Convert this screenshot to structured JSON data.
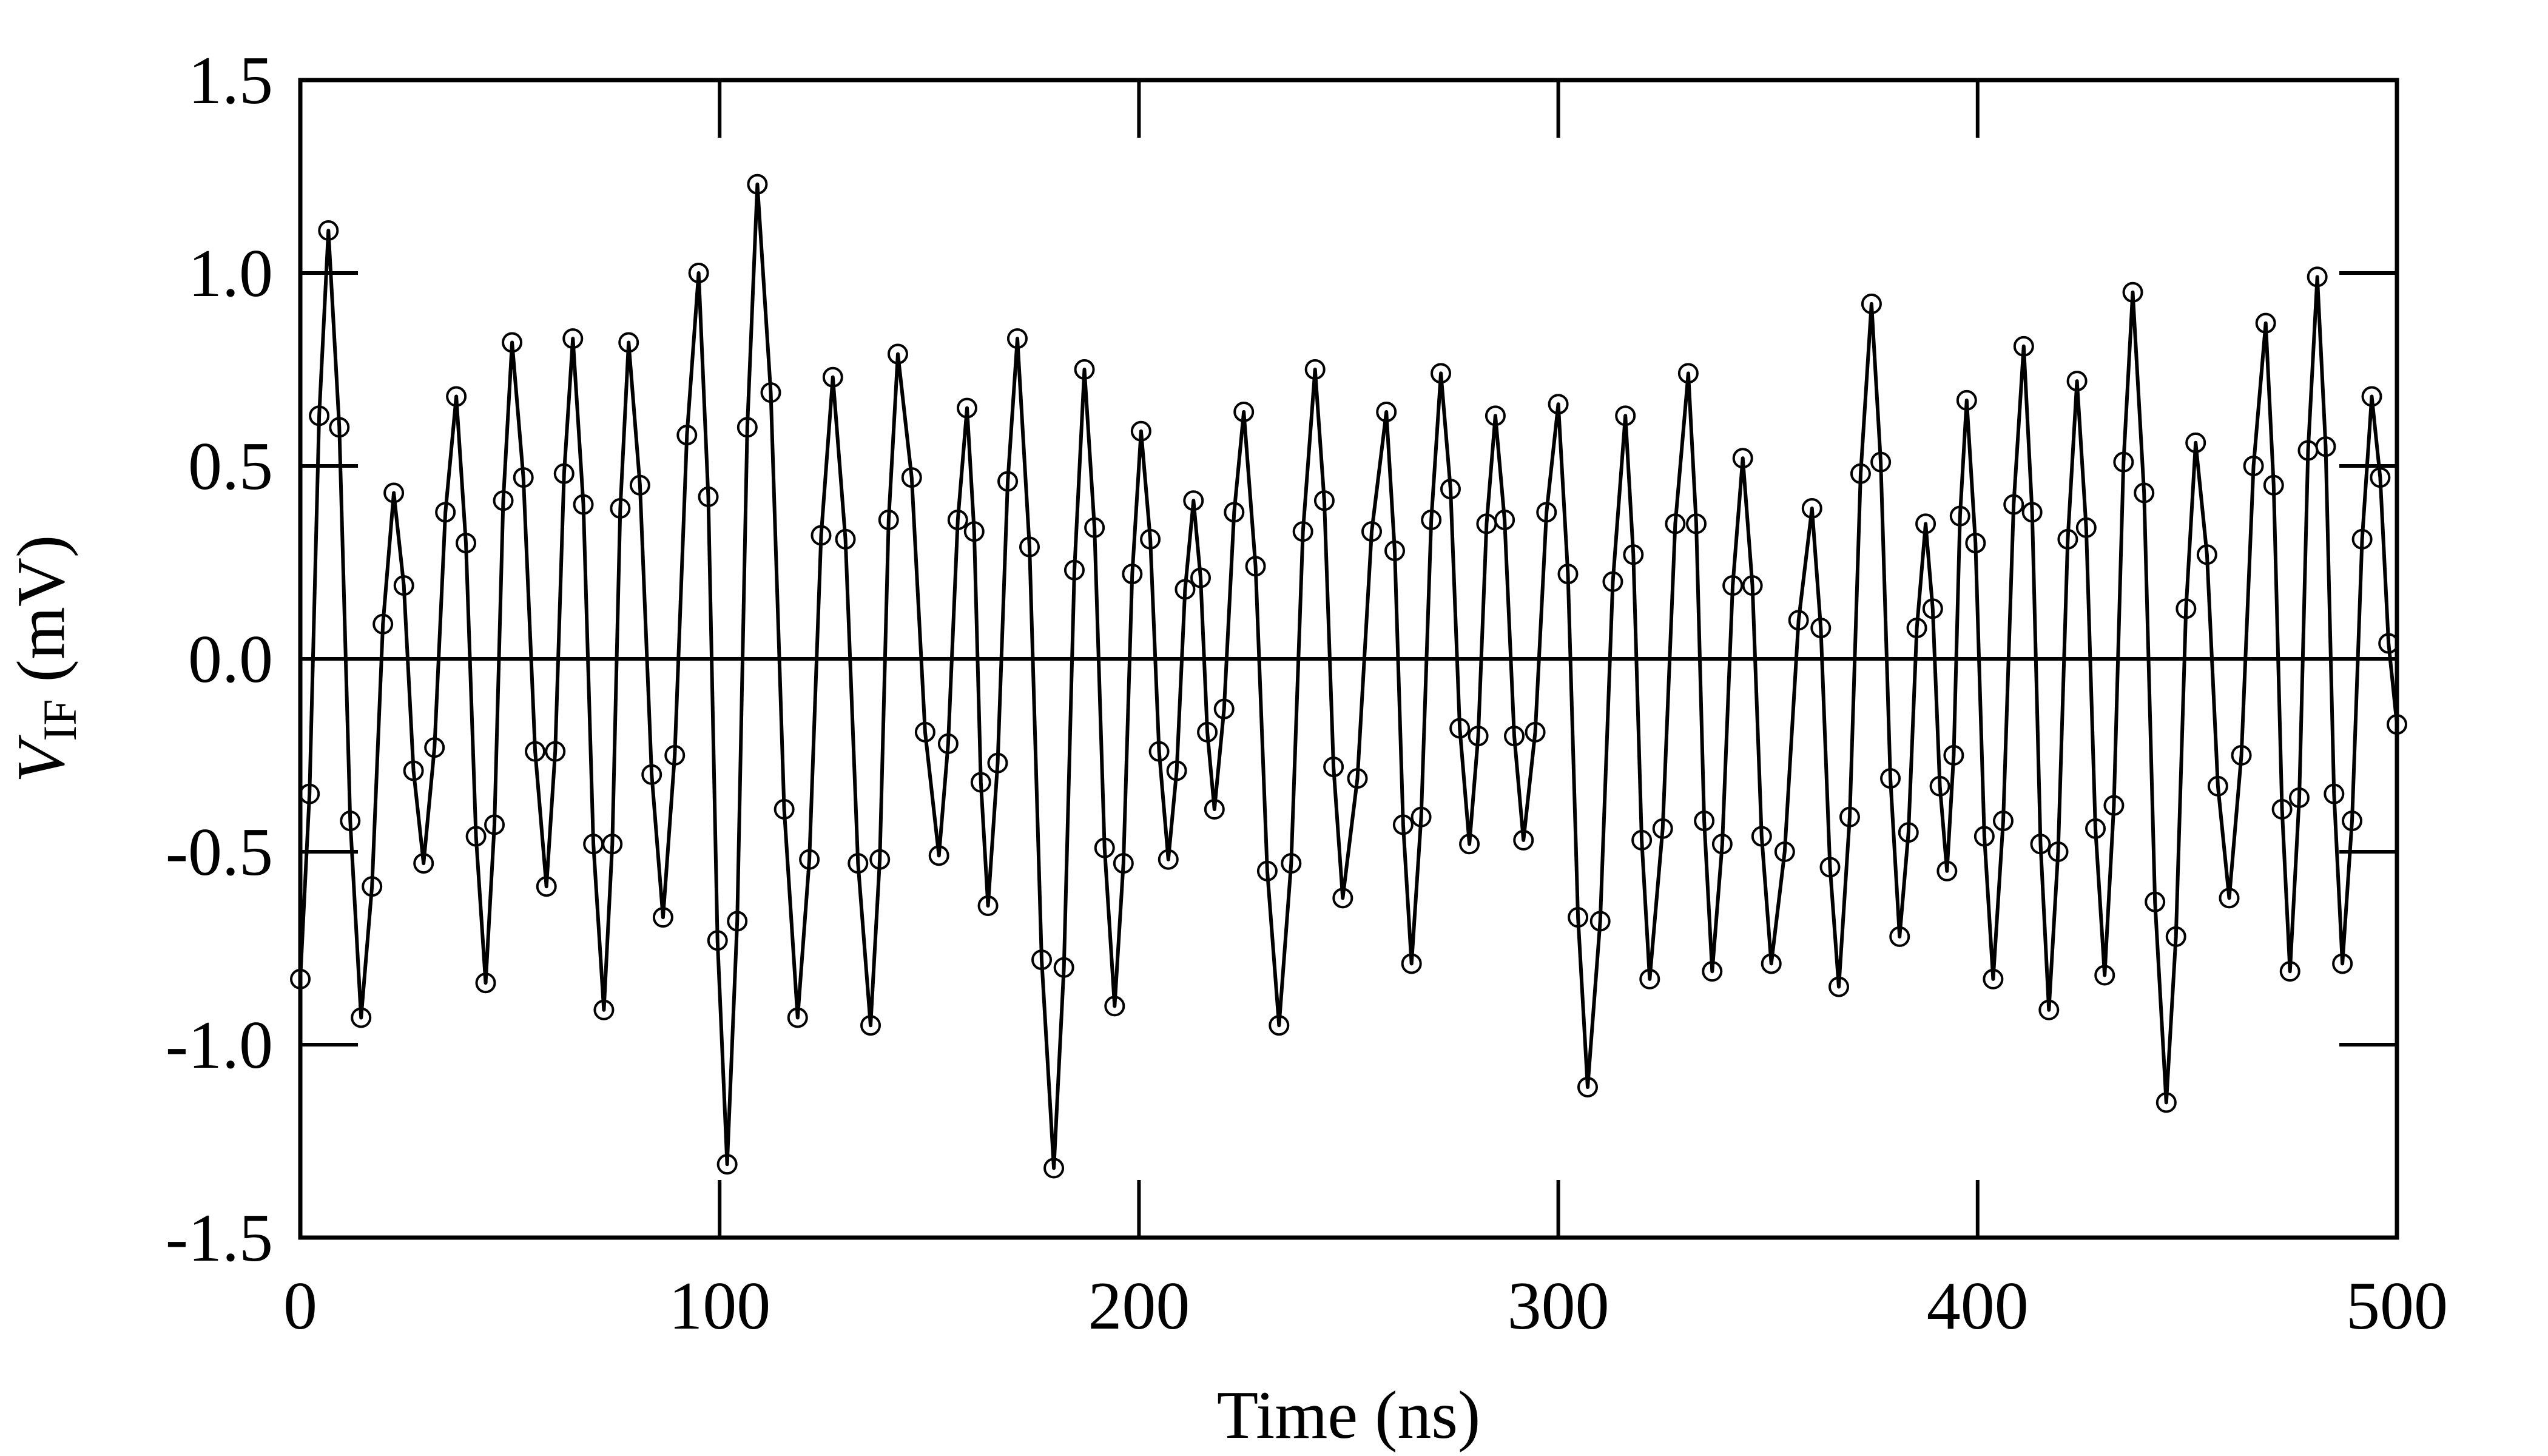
{
  "chart_data": {
    "type": "line",
    "xlabel": "Time (ns)",
    "ylabel": {
      "symbol": "V",
      "subscript": "IF",
      "unit": "(mV)"
    },
    "xlim": [
      0,
      500
    ],
    "xticks": [
      0,
      100,
      200,
      300,
      400,
      500
    ],
    "ylim": [
      -1.5,
      1.5
    ],
    "yticks": [
      -1.5,
      {
        "value": -1,
        "label": "-1.0"
      },
      -0.5,
      {
        "value": 0,
        "label": "0.0"
      },
      0.5,
      {
        "value": 1,
        "label": "1.0"
      },
      1.5
    ],
    "hline": 0,
    "series": [
      {
        "color": "#000000",
        "x": [
          0,
          2.2,
          4.5,
          6.7,
          9.3,
          11.9,
          14.5,
          17.1,
          19.7,
          22.3,
          24.7,
          27.0,
          29.4,
          32.0,
          34.6,
          37.2,
          39.5,
          41.9,
          44.2,
          46.3,
          48.4,
          50.5,
          53.2,
          56.0,
          58.7,
          60.8,
          62.9,
          65,
          67.5,
          69.9,
          72.4,
          74.4,
          76.3,
          78.3,
          81.0,
          83.8,
          86.5,
          89.3,
          92.2,
          95,
          97.3,
          99.5,
          101.8,
          104.2,
          106.6,
          109,
          112.2,
          115.4,
          118.6,
          121.4,
          124.2,
          127,
          130,
          133,
          136,
          138.2,
          140.3,
          142.5,
          145.8,
          149.0,
          152.3,
          154.5,
          156.8,
          159,
          160.7,
          162.3,
          164,
          166.3,
          168.7,
          171,
          173.9,
          176.8,
          179.7,
          182.1,
          184.6,
          187,
          189.4,
          191.8,
          194.2,
          196.3,
          198.4,
          200.5,
          202.7,
          204.8,
          207,
          209,
          211,
          213,
          214.7,
          216.3,
          218,
          220.3,
          222.7,
          225,
          227.8,
          230.6,
          233.4,
          236.3,
          239.1,
          242,
          244.2,
          246.4,
          248.6,
          252.1,
          255.5,
          259,
          261,
          263,
          265,
          267.3,
          269.7,
          272,
          274.3,
          276.5,
          278.8,
          280.9,
          282.9,
          285,
          287.2,
          289.5,
          291.7,
          294.5,
          297.2,
          300,
          302.3,
          304.7,
          307,
          310,
          313,
          316,
          317.9,
          319.9,
          321.8,
          324.9,
          327.9,
          331,
          332.9,
          334.8,
          336.7,
          339.1,
          341.6,
          344,
          346.3,
          348.5,
          350.8,
          354.0,
          357.3,
          360.5,
          362.6,
          364.8,
          366.9,
          369.5,
          372.1,
          374.7,
          376.9,
          379.2,
          381.4,
          383.5,
          385.5,
          387.6,
          389.3,
          391.0,
          392.7,
          394.3,
          395.8,
          397.4,
          399.5,
          401.6,
          403.7,
          406.1,
          408.6,
          411,
          413,
          415,
          417,
          419.2,
          421.5,
          423.7,
          425.9,
          428.1,
          430.3,
          432.5,
          434.8,
          437,
          439.7,
          442.3,
          445,
          447.3,
          449.7,
          452,
          454.7,
          457.3,
          460,
          462.9,
          465.8,
          468.7,
          470.6,
          472.6,
          474.5,
          476.7,
          478.8,
          481,
          483,
          485,
          487,
          489.3,
          491.7,
          494,
          496,
          498,
          500
        ],
        "values": [
          -0.83,
          -0.35,
          0.63,
          1.11,
          0.6,
          -0.42,
          -0.93,
          -0.59,
          0.09,
          0.43,
          0.19,
          -0.29,
          -0.53,
          -0.23,
          0.38,
          0.68,
          0.3,
          -0.46,
          -0.84,
          -0.43,
          0.41,
          0.82,
          0.47,
          -0.24,
          -0.59,
          -0.24,
          0.48,
          0.83,
          0.4,
          -0.48,
          -0.91,
          -0.48,
          0.39,
          0.82,
          0.45,
          -0.3,
          -0.67,
          -0.25,
          0.58,
          1.0,
          0.42,
          -0.73,
          -1.31,
          -0.68,
          0.6,
          1.23,
          0.69,
          -0.39,
          -0.93,
          -0.52,
          0.32,
          0.73,
          0.31,
          -0.53,
          -0.95,
          -0.52,
          0.36,
          0.79,
          0.47,
          -0.19,
          -0.51,
          -0.22,
          0.36,
          0.65,
          0.33,
          -0.32,
          -0.64,
          -0.27,
          0.46,
          0.83,
          0.29,
          -0.78,
          -1.32,
          -0.8,
          0.23,
          0.75,
          0.34,
          -0.49,
          -0.9,
          -0.53,
          0.22,
          0.59,
          0.31,
          -0.24,
          -0.52,
          -0.29,
          0.18,
          0.41,
          0.21,
          -0.19,
          -0.39,
          -0.13,
          0.38,
          0.64,
          0.24,
          -0.55,
          -0.95,
          -0.53,
          0.33,
          0.75,
          0.41,
          -0.28,
          -0.62,
          -0.31,
          0.33,
          0.64,
          0.28,
          -0.43,
          -0.79,
          -0.41,
          0.36,
          0.74,
          0.44,
          -0.18,
          -0.48,
          -0.2,
          0.35,
          0.63,
          0.36,
          -0.2,
          -0.47,
          -0.19,
          0.38,
          0.66,
          0.22,
          -0.67,
          -1.11,
          -0.68,
          0.2,
          0.63,
          0.27,
          -0.47,
          -0.83,
          -0.44,
          0.35,
          0.74,
          0.35,
          -0.42,
          -0.81,
          -0.48,
          0.19,
          0.52,
          0.19,
          -0.46,
          -0.79,
          -0.5,
          0.1,
          0.39,
          0.08,
          -0.54,
          -0.85,
          -0.41,
          0.48,
          0.92,
          0.51,
          -0.31,
          -0.72,
          -0.45,
          0.08,
          0.35,
          0.13,
          -0.33,
          -0.55,
          -0.25,
          0.37,
          0.67,
          0.3,
          -0.46,
          -0.83,
          -0.42,
          0.4,
          0.81,
          0.38,
          -0.48,
          -0.91,
          -0.5,
          0.31,
          0.72,
          0.34,
          -0.44,
          -0.82,
          -0.38,
          0.51,
          0.95,
          0.43,
          -0.63,
          -1.15,
          -0.72,
          0.13,
          0.56,
          0.27,
          -0.33,
          -0.62,
          -0.25,
          0.5,
          0.87,
          0.45,
          -0.39,
          -0.81,
          -0.36,
          0.54,
          0.99,
          0.55,
          -0.35,
          -0.79,
          -0.42,
          0.31,
          0.68,
          0.47,
          0.04,
          -0.17
        ]
      }
    ]
  }
}
